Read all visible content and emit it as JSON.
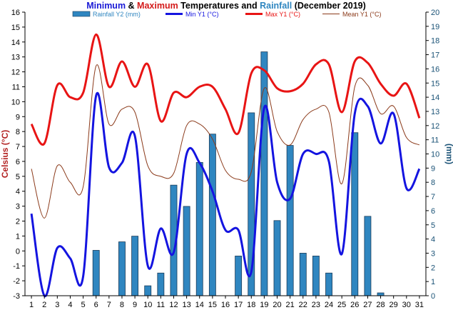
{
  "chart_data": {
    "type": "bar",
    "title_parts": [
      {
        "text": "Minimum",
        "color": "#1a1ad6"
      },
      {
        "text": " & ",
        "color": "#000000"
      },
      {
        "text": "Maximum",
        "color": "#d41a1a"
      },
      {
        "text": " Temperatures and ",
        "color": "#000000"
      },
      {
        "text": "Rainfall",
        "color": "#2f86c0"
      },
      {
        "text": " (December 2019)",
        "color": "#000000"
      }
    ],
    "ylabel_left": "Celsius (°C)",
    "ylabel_right": "(mm)",
    "ylim_left": [
      -3,
      16
    ],
    "ylim_right": [
      0,
      20
    ],
    "x": [
      1,
      2,
      3,
      4,
      5,
      6,
      7,
      8,
      9,
      10,
      11,
      12,
      13,
      14,
      15,
      16,
      17,
      18,
      19,
      20,
      21,
      22,
      23,
      24,
      25,
      26,
      27,
      28,
      29,
      30,
      31
    ],
    "legend": [
      {
        "label": "Rainfall Y2 (mm)",
        "kind": "bar",
        "color": "#2f86c0",
        "text_color": "#2f86c0"
      },
      {
        "label": "Min Y1 (°C)",
        "kind": "line",
        "color": "#1414e0",
        "text_color": "#1414e0"
      },
      {
        "label": "Max Y1 (°C)",
        "kind": "line",
        "color": "#e81414",
        "text_color": "#e81414"
      },
      {
        "label": "Mean Y1 (°C)",
        "kind": "line",
        "color": "#8b3a1a",
        "text_color": "#8b3a1a"
      }
    ],
    "series": [
      {
        "name": "Rainfall Y2 (mm)",
        "axis": "right",
        "type": "bar",
        "color": "#2f86c0",
        "values": [
          0,
          0,
          0,
          0,
          0,
          3.2,
          0,
          3.8,
          4.2,
          0.7,
          1.6,
          7.8,
          6.3,
          9.4,
          11.4,
          0,
          2.8,
          12.9,
          17.2,
          5.3,
          10.6,
          3.0,
          2.8,
          1.6,
          0,
          11.5,
          5.6,
          0.2,
          0,
          0,
          0
        ]
      },
      {
        "name": "Min Y1 (°C)",
        "axis": "left",
        "type": "line",
        "color": "#1414e0",
        "width": 3,
        "values": [
          2.5,
          -3.0,
          0.2,
          -0.5,
          -1.7,
          10.4,
          5.6,
          5.9,
          7.7,
          -1.0,
          1.5,
          -0.1,
          6.5,
          5.9,
          4.0,
          1.4,
          1.4,
          -1.4,
          9.6,
          4.6,
          3.5,
          6.5,
          6.5,
          6.0,
          -0.2,
          9.2,
          9.7,
          7.2,
          9.2,
          4.2,
          5.5
        ]
      },
      {
        "name": "Max Y1 (°C)",
        "axis": "left",
        "type": "line",
        "color": "#e81414",
        "width": 3,
        "values": [
          8.5,
          7.2,
          11.1,
          10.3,
          10.6,
          14.5,
          11.0,
          12.7,
          11.0,
          12.5,
          8.7,
          10.6,
          10.3,
          11.0,
          11.0,
          9.5,
          7.9,
          11.9,
          12.1,
          10.9,
          10.7,
          11.2,
          12.5,
          12.5,
          9.3,
          12.7,
          12.6,
          11.2,
          10.4,
          11.2,
          8.9
        ]
      },
      {
        "name": "Mean Y1 (°C)",
        "axis": "left",
        "type": "line",
        "color": "#8b3a1a",
        "width": 1,
        "values": [
          5.5,
          2.2,
          5.7,
          4.6,
          4.3,
          12.4,
          8.5,
          9.5,
          9.3,
          5.7,
          5.0,
          5.2,
          8.4,
          8.5,
          7.5,
          5.4,
          4.8,
          5.3,
          10.9,
          8.0,
          7.1,
          8.8,
          9.5,
          9.3,
          4.5,
          11.0,
          11.1,
          9.2,
          9.7,
          7.6,
          7.1
        ]
      }
    ],
    "grid": false,
    "legend_position": "top"
  }
}
